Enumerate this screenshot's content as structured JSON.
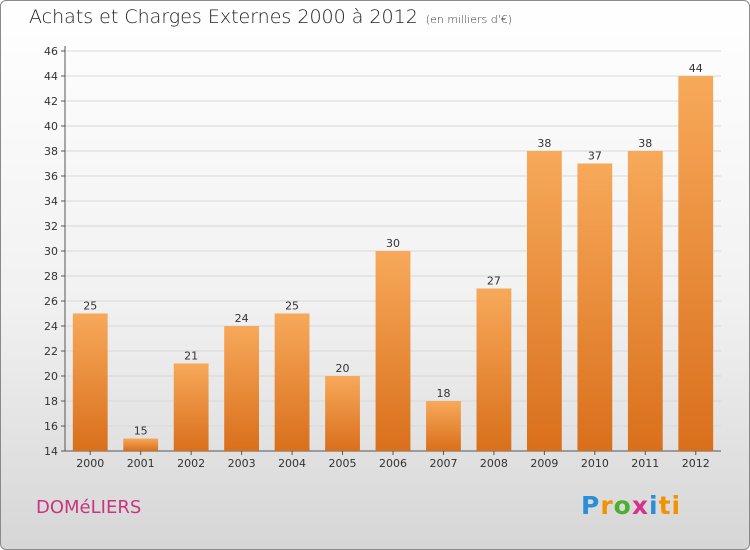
{
  "title": "Achats et Charges Externes 2000 à 2012",
  "unit": "(en milliers d'€)",
  "commune": "DOMéLIERS",
  "logo": {
    "letters": [
      "P",
      "r",
      "o",
      "x",
      "i",
      "t",
      "i"
    ]
  },
  "colors": {
    "bar_light": "#f7a95a",
    "bar_dark": "#d96f1b",
    "commune": "#c8357f",
    "grid": "#d8d8d8"
  },
  "chart_data": {
    "type": "bar",
    "categories": [
      "2000",
      "2001",
      "2002",
      "2003",
      "2004",
      "2005",
      "2006",
      "2007",
      "2008",
      "2009",
      "2010",
      "2011",
      "2012"
    ],
    "values": [
      25,
      15,
      21,
      24,
      25,
      20,
      30,
      18,
      27,
      38,
      37,
      38,
      44
    ],
    "ylim": [
      14,
      46
    ],
    "yticks": [
      14,
      16,
      18,
      20,
      22,
      24,
      26,
      28,
      30,
      32,
      34,
      36,
      38,
      40,
      42,
      44,
      46
    ],
    "grid": true,
    "xlabel": "",
    "ylabel": ""
  }
}
